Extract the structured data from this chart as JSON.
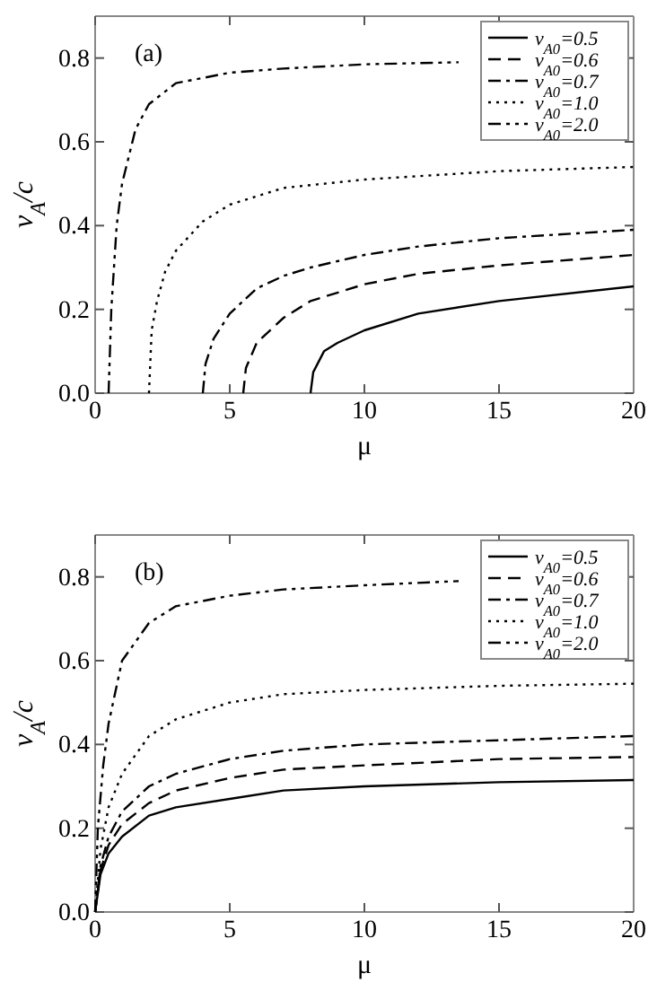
{
  "chart_data": [
    {
      "type": "line",
      "xlabel": "μ",
      "ylabel": "v$_{A}$/c",
      "annotations": [
        "(a)"
      ],
      "xlim": [
        0,
        20
      ],
      "ylim": [
        0,
        0.9
      ],
      "xticks": [
        0,
        5,
        10,
        15,
        20
      ],
      "yticks": [
        {
          "value": 0,
          "label": "0.0"
        },
        {
          "value": 0.2,
          "label": "0.2"
        },
        {
          "value": 0.4,
          "label": "0.4"
        },
        {
          "value": 0.6,
          "label": "0.6"
        },
        {
          "value": 0.8,
          "label": "0.8"
        }
      ],
      "legend": "top right",
      "series": [
        {
          "name": "v$_{A0}$=0.5",
          "color": "#000000",
          "line_style": "solid",
          "x": [
            8,
            8.1,
            8.5,
            9,
            10,
            12,
            15,
            20
          ],
          "values": [
            0,
            0.05,
            0.1,
            0.12,
            0.15,
            0.19,
            0.22,
            0.255
          ]
        },
        {
          "name": "v$_{A0}$=0.6",
          "color": "#000000",
          "line_style": "dashed",
          "x": [
            5.5,
            5.6,
            6,
            7,
            8,
            10,
            12,
            15,
            20
          ],
          "values": [
            0,
            0.06,
            0.12,
            0.18,
            0.22,
            0.26,
            0.285,
            0.305,
            0.33
          ]
        },
        {
          "name": "v$_{A0}$=0.7",
          "color": "#000000",
          "line_style": "dashdot",
          "x": [
            4,
            4.1,
            4.4,
            5,
            6,
            7,
            8,
            10,
            12,
            15,
            20
          ],
          "values": [
            0,
            0.07,
            0.13,
            0.19,
            0.25,
            0.28,
            0.3,
            0.33,
            0.35,
            0.37,
            0.39
          ]
        },
        {
          "name": "v$_{A0}$=1.0",
          "color": "#000000",
          "line_style": "dotted",
          "x": [
            2,
            2.1,
            2.3,
            2.6,
            3,
            4,
            5,
            7,
            10,
            15,
            20
          ],
          "values": [
            0,
            0.15,
            0.22,
            0.29,
            0.34,
            0.41,
            0.45,
            0.49,
            0.51,
            0.53,
            0.54
          ]
        },
        {
          "name": "v$_{A0}$=2.0",
          "color": "#000000",
          "line_style": "dashdotdot",
          "x": [
            0.5,
            0.6,
            0.8,
            1,
            1.5,
            2,
            3,
            5,
            7,
            10,
            13.5
          ],
          "values": [
            0,
            0.2,
            0.4,
            0.5,
            0.63,
            0.69,
            0.74,
            0.765,
            0.775,
            0.785,
            0.79
          ]
        }
      ]
    },
    {
      "type": "line",
      "xlabel": "μ",
      "ylabel": "v$_{A}$/c",
      "annotations": [
        "(b)"
      ],
      "xlim": [
        0,
        20
      ],
      "ylim": [
        0,
        0.9
      ],
      "xticks": [
        0,
        5,
        10,
        15,
        20
      ],
      "yticks": [
        {
          "value": 0,
          "label": "0.0"
        },
        {
          "value": 0.2,
          "label": "0.2"
        },
        {
          "value": 0.4,
          "label": "0.4"
        },
        {
          "value": 0.6,
          "label": "0.6"
        },
        {
          "value": 0.8,
          "label": "0.8"
        }
      ],
      "legend": "top right",
      "series": [
        {
          "name": "v$_{A0}$=0.5",
          "color": "#000000",
          "line_style": "solid",
          "x": [
            0,
            0.2,
            0.5,
            1,
            2,
            3,
            5,
            7,
            10,
            15,
            20
          ],
          "values": [
            0,
            0.09,
            0.14,
            0.18,
            0.23,
            0.25,
            0.27,
            0.29,
            0.3,
            0.31,
            0.315
          ]
        },
        {
          "name": "v$_{A0}$=0.6",
          "color": "#000000",
          "line_style": "dashed",
          "x": [
            0,
            0.2,
            0.5,
            1,
            2,
            3,
            5,
            7,
            10,
            15,
            20
          ],
          "values": [
            0,
            0.1,
            0.16,
            0.21,
            0.26,
            0.29,
            0.32,
            0.34,
            0.35,
            0.365,
            0.37
          ]
        },
        {
          "name": "v$_{A0}$=0.7",
          "color": "#000000",
          "line_style": "dashdot",
          "x": [
            0,
            0.2,
            0.5,
            1,
            2,
            3,
            5,
            7,
            10,
            15,
            20
          ],
          "values": [
            0,
            0.11,
            0.18,
            0.24,
            0.3,
            0.33,
            0.365,
            0.385,
            0.4,
            0.41,
            0.42
          ]
        },
        {
          "name": "v$_{A0}$=1.0",
          "color": "#000000",
          "line_style": "dotted",
          "x": [
            0,
            0.2,
            0.5,
            1,
            2,
            3,
            5,
            7,
            10,
            15,
            20
          ],
          "values": [
            0,
            0.15,
            0.25,
            0.33,
            0.42,
            0.46,
            0.5,
            0.52,
            0.53,
            0.54,
            0.545
          ]
        },
        {
          "name": "v$_{A0}$=2.0",
          "color": "#000000",
          "line_style": "dashdotdot",
          "x": [
            0,
            0.1,
            0.3,
            0.5,
            1,
            2,
            3,
            5,
            7,
            10,
            13.5
          ],
          "values": [
            0,
            0.2,
            0.35,
            0.45,
            0.6,
            0.69,
            0.73,
            0.755,
            0.77,
            0.78,
            0.79
          ]
        }
      ]
    }
  ]
}
